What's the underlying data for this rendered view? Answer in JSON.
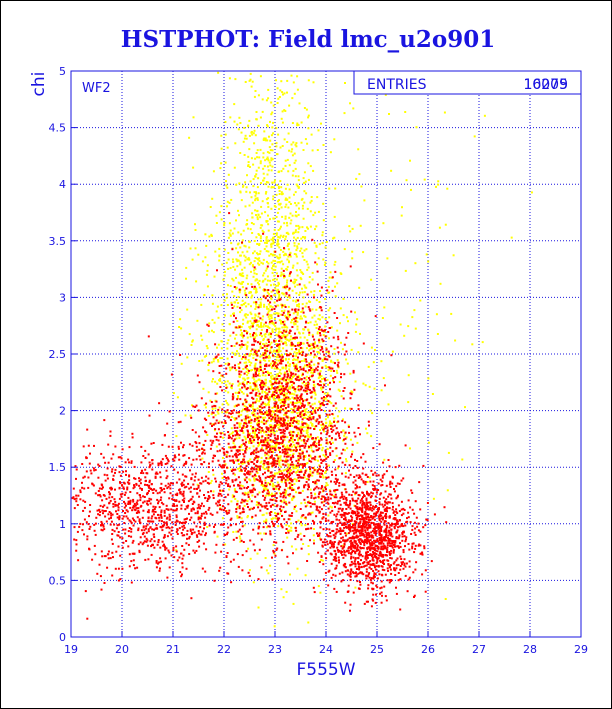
{
  "chart_data": {
    "type": "scatter",
    "title": "HSTPHOT: Field lmc_u2o901",
    "xlabel": "F555W",
    "ylabel": "chi",
    "xlim": [
      19,
      29
    ],
    "ylim": [
      0,
      5
    ],
    "xticks": [
      "19",
      "20",
      "21",
      "22",
      "23",
      "24",
      "25",
      "26",
      "27",
      "28",
      "29"
    ],
    "yticks": [
      "0",
      "0.5",
      "1",
      "1.5",
      "2",
      "2.5",
      "3",
      "3.5",
      "4",
      "4.5",
      "5"
    ],
    "grid": true,
    "panel_label": "WF2",
    "stats": {
      "label": "ENTRIES",
      "values": [
        "10009",
        "16275"
      ]
    },
    "series": [
      {
        "color": "#ffff00",
        "approx_count": 3000,
        "clusters": [
          {
            "weight": 0.62,
            "mx": 22.85,
            "sx": 0.6,
            "my": 2.6,
            "sy": 0.85
          },
          {
            "weight": 0.22,
            "mx": 23.3,
            "sx": 0.55,
            "my": 1.9,
            "sy": 0.45
          },
          {
            "weight": 0.1,
            "mx": 23.0,
            "sx": 0.45,
            "my": 4.2,
            "sy": 0.55
          },
          {
            "weight": 0.06,
            "mx": 24.6,
            "sx": 1.3,
            "my": 3.0,
            "sy": 1.2
          }
        ]
      },
      {
        "color": "#ff0000",
        "approx_count": 4200,
        "clusters": [
          {
            "weight": 0.24,
            "mx": 20.6,
            "sx": 0.95,
            "my": 1.15,
            "sy": 0.28
          },
          {
            "weight": 0.24,
            "mx": 22.8,
            "sx": 0.75,
            "my": 1.7,
            "sy": 0.42
          },
          {
            "weight": 0.14,
            "mx": 23.3,
            "sx": 0.55,
            "my": 2.35,
            "sy": 0.45
          },
          {
            "weight": 0.3,
            "mx": 24.85,
            "sx": 0.45,
            "my": 0.9,
            "sy": 0.24
          },
          {
            "weight": 0.08,
            "mx": 23.8,
            "sx": 0.75,
            "my": 1.35,
            "sy": 0.35
          }
        ]
      }
    ]
  }
}
